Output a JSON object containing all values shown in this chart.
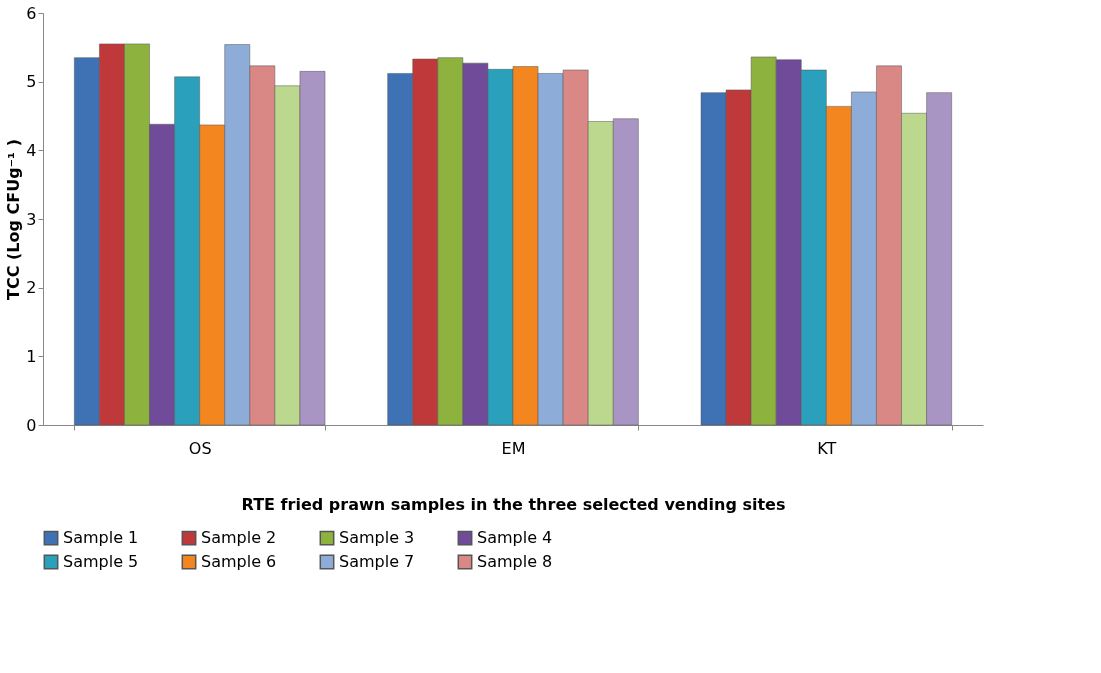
{
  "chart_data": {
    "type": "bar",
    "xlabel": "RTE fried prawn samples in the three selected vending sites",
    "ylabel": "TCC (Log CFUg⁻¹ )",
    "categories": [
      "OS",
      "EM",
      "KT"
    ],
    "ylim": [
      0,
      6
    ],
    "yticks": [
      0,
      1,
      2,
      3,
      4,
      5,
      6
    ],
    "grid": false,
    "legend": "bottom",
    "series": [
      {
        "name": "Sample 1",
        "color": "#3f72b5",
        "values": [
          5.35,
          5.12,
          4.84
        ]
      },
      {
        "name": "Sample 2",
        "color": "#c0393a",
        "values": [
          5.55,
          5.33,
          4.88
        ]
      },
      {
        "name": "Sample 3",
        "color": "#8db33e",
        "values": [
          5.55,
          5.35,
          5.36
        ]
      },
      {
        "name": "Sample 4",
        "color": "#6f4b9a",
        "values": [
          4.38,
          5.27,
          5.32
        ]
      },
      {
        "name": "Sample 5",
        "color": "#2aa0bc",
        "values": [
          5.07,
          5.18,
          5.17
        ]
      },
      {
        "name": "Sample 6",
        "color": "#f3861f",
        "values": [
          4.37,
          5.22,
          4.64
        ]
      },
      {
        "name": "Sample 7",
        "color": "#8eacd8",
        "values": [
          5.54,
          5.12,
          4.85
        ]
      },
      {
        "name": "Sample 8",
        "color": "#d98886",
        "values": [
          5.23,
          5.17,
          5.23
        ]
      },
      {
        "color": "#bcd88f",
        "values": [
          4.94,
          4.42,
          4.54
        ]
      },
      {
        "color": "#a995c4",
        "values": [
          5.15,
          4.46,
          4.84
        ]
      }
    ]
  }
}
